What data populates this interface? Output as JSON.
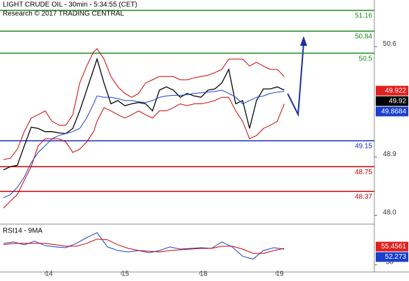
{
  "chart_data": [
    {
      "type": "line",
      "title": "LIGHT CRUDE OIL - 30min - 5:34:55 (CET)",
      "subtitle": "Research © 2017 TRADING CENTRAL",
      "xlim": [
        0,
        540
      ],
      "ylim": [
        47.875,
        51.32
      ],
      "yticks": [
        50.6,
        48.9,
        {
          "value": 48.0,
          "label": "48.0"
        }
      ],
      "x": [
        5,
        15,
        25,
        35,
        45,
        55,
        65,
        75,
        85,
        95,
        105,
        115,
        125,
        135,
        140,
        150,
        160,
        170,
        180,
        190,
        200,
        210,
        220,
        230,
        240,
        250,
        260,
        270,
        280,
        290,
        300,
        310,
        320,
        330,
        340,
        350,
        360,
        370,
        380,
        390,
        400,
        410
      ],
      "series": [
        {
          "color": "#000000",
          "width": 1.3,
          "values": [
            48.7,
            48.75,
            48.77,
            49.07,
            49.36,
            49.34,
            49.29,
            49.29,
            49.27,
            49.26,
            49.34,
            49.61,
            49.93,
            50.25,
            50.41,
            50.04,
            49.72,
            49.77,
            49.69,
            49.72,
            49.74,
            49.72,
            49.61,
            49.93,
            49.98,
            49.93,
            49.82,
            49.88,
            49.84,
            49.82,
            49.93,
            49.95,
            50.04,
            50.25,
            49.72,
            49.77,
            49.34,
            49.77,
            49.95,
            49.95,
            49.98,
            49.93
          ]
        },
        {
          "color": "#cc0000",
          "width": 1,
          "values": [
            48.86,
            48.88,
            49.02,
            49.29,
            49.5,
            49.55,
            49.61,
            49.45,
            49.39,
            49.39,
            49.55,
            50.04,
            50.3,
            50.52,
            50.57,
            50.41,
            50.14,
            49.98,
            49.88,
            49.82,
            49.88,
            50.04,
            50.09,
            50.14,
            50.14,
            50.14,
            50.09,
            50.09,
            50.12,
            50.14,
            50.16,
            50.2,
            50.25,
            50.41,
            50.41,
            50.41,
            50.3,
            50.36,
            50.3,
            50.25,
            50.25,
            50.14
          ]
        },
        {
          "color": "#cc0000",
          "width": 1,
          "values": [
            48.11,
            48.22,
            48.32,
            48.54,
            48.75,
            49.07,
            49.18,
            49.18,
            49.18,
            49.13,
            48.97,
            49.02,
            49.13,
            49.29,
            49.45,
            49.66,
            49.61,
            49.55,
            49.5,
            49.55,
            49.61,
            49.55,
            49.5,
            49.61,
            49.61,
            49.66,
            49.72,
            49.69,
            49.72,
            49.72,
            49.74,
            49.77,
            49.82,
            49.82,
            49.61,
            49.45,
            49.18,
            49.23,
            49.34,
            49.39,
            49.45,
            49.72
          ]
        },
        {
          "color": "#1a3fcc",
          "width": 1,
          "values": [
            48.27,
            48.32,
            48.43,
            48.59,
            48.81,
            48.97,
            49.07,
            49.18,
            49.23,
            49.26,
            49.29,
            49.34,
            49.5,
            49.72,
            49.84,
            49.82,
            49.82,
            49.8,
            49.77,
            49.77,
            49.75,
            49.74,
            49.77,
            49.82,
            49.84,
            49.85,
            49.85,
            49.86,
            49.88,
            49.89,
            49.9,
            49.91,
            49.93,
            49.88,
            49.82,
            49.72,
            49.77,
            49.82,
            49.84,
            49.88,
            49.9,
            49.91
          ]
        }
      ],
      "levels": [
        {
          "value": 51.16,
          "color": "#1a8a1a"
        },
        {
          "value": 50.84,
          "color": "#1a8a1a"
        },
        {
          "value": 50.5,
          "color": "#1a8a1a"
        },
        {
          "value": 49.15,
          "color": "#1a2fbb"
        },
        {
          "value": 48.75,
          "color": "#cc0000"
        },
        {
          "value": 48.37,
          "color": "#cc0000"
        }
      ],
      "price_tags": [
        {
          "value": 49.922,
          "color": "#e02020"
        },
        {
          "value": 49.92,
          "color": "#000000"
        },
        {
          "value": 49.8684,
          "color": "#1a3fcc"
        }
      ]
    },
    {
      "type": "line",
      "title": "RSI14 - 9MA",
      "xlim": [
        0,
        540
      ],
      "ylim": [
        20,
        85
      ],
      "yticks": [
        30
      ],
      "xticks": [
        {
          "value": 65,
          "label": "14"
        },
        {
          "value": 175,
          "label": "15"
        },
        {
          "value": 288,
          "label": "18"
        },
        {
          "value": 398,
          "label": "19"
        }
      ],
      "x": [
        5,
        20,
        35,
        50,
        65,
        80,
        95,
        110,
        125,
        140,
        155,
        170,
        185,
        200,
        215,
        230,
        245,
        260,
        275,
        290,
        305,
        320,
        335,
        350,
        365,
        380,
        395,
        410
      ],
      "series": [
        {
          "color": "#1a3fcc",
          "width": 1,
          "values": [
            60,
            62,
            58,
            63,
            57,
            55,
            54,
            60,
            68,
            75,
            55,
            50,
            48,
            50,
            47,
            50,
            55,
            52,
            53,
            54,
            53,
            62,
            55,
            42,
            38,
            50,
            54,
            52
          ]
        },
        {
          "color": "#cc0000",
          "width": 1,
          "values": [
            58,
            60,
            60,
            60,
            60,
            58,
            56,
            56,
            60,
            66,
            65,
            58,
            53,
            50,
            49,
            48,
            50,
            51,
            52,
            53,
            53,
            56,
            56,
            52,
            46,
            46,
            50,
            53
          ]
        }
      ],
      "price_tags": [
        {
          "value": 55.4561,
          "color": "#e02020"
        },
        {
          "value": 52.273,
          "color": "#1a3fcc"
        }
      ]
    }
  ]
}
